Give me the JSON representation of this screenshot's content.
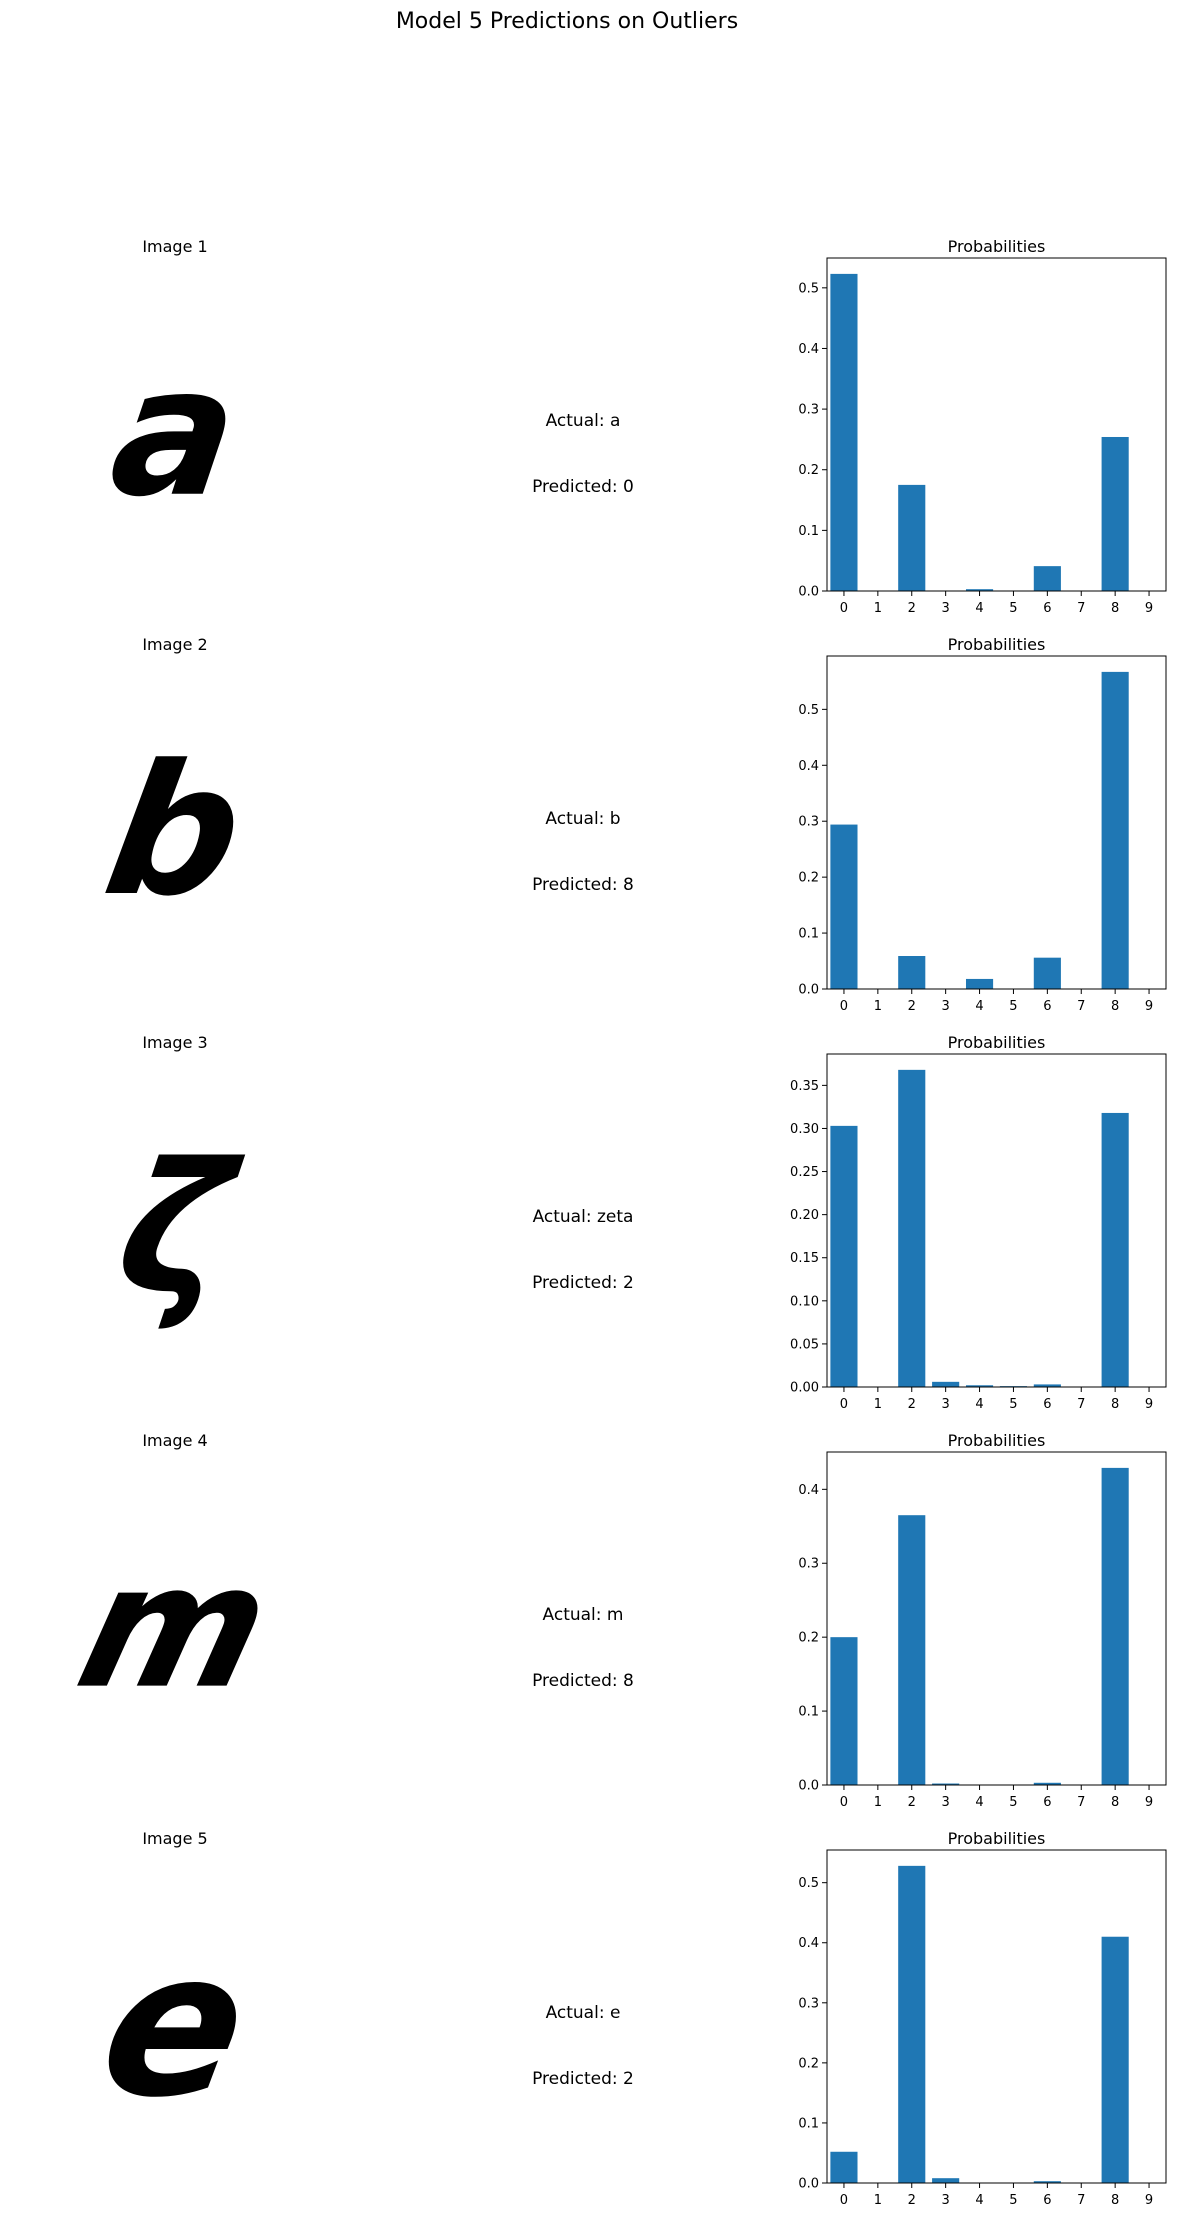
{
  "figure": {
    "title": "Model 5 Predictions on Outliers",
    "panels": [
      {
        "image_title": "Image 1",
        "actual": "Actual: a",
        "predicted": "Predicted: 0",
        "glyph": "a",
        "glyph_size": 178,
        "glyph_skew": -8
      },
      {
        "image_title": "Image 2",
        "actual": "Actual: b",
        "predicted": "Predicted: 8",
        "glyph": "b",
        "glyph_size": 180,
        "glyph_skew": -10
      },
      {
        "image_title": "Image 3",
        "actual": "Actual: zeta",
        "predicted": "Predicted: 2",
        "glyph": "ζ",
        "glyph_size": 180,
        "glyph_skew": -8
      },
      {
        "image_title": "Image 4",
        "actual": "Actual: m",
        "predicted": "Predicted: 8",
        "glyph": "m",
        "glyph_size": 170,
        "glyph_skew": -14
      },
      {
        "image_title": "Image 5",
        "actual": "Actual: e",
        "predicted": "Predicted: 2",
        "glyph": "e",
        "glyph_size": 200,
        "glyph_skew": -10
      }
    ]
  },
  "colors": {
    "bar": "#1f77b4",
    "axis": "#000000",
    "glyph": "#000000"
  },
  "chart_data": [
    {
      "type": "bar",
      "title": "Probabilities",
      "categories": [
        "0",
        "1",
        "2",
        "3",
        "4",
        "5",
        "6",
        "7",
        "8",
        "9"
      ],
      "values": [
        0.523,
        0.0,
        0.175,
        0.0,
        0.003,
        0.0,
        0.041,
        0.0,
        0.254,
        0.0
      ],
      "ylim": [
        0,
        0.5492
      ],
      "yticks": [
        0.0,
        0.1,
        0.2,
        0.3,
        0.4,
        0.5
      ],
      "ytick_labels": [
        "0.0",
        "0.1",
        "0.2",
        "0.3",
        "0.4",
        "0.5"
      ]
    },
    {
      "type": "bar",
      "title": "Probabilities",
      "categories": [
        "0",
        "1",
        "2",
        "3",
        "4",
        "5",
        "6",
        "7",
        "8",
        "9"
      ],
      "values": [
        0.294,
        0.0,
        0.059,
        0.0,
        0.018,
        0.0,
        0.056,
        0.0,
        0.567,
        0.0
      ],
      "ylim": [
        0,
        0.5954
      ],
      "yticks": [
        0.0,
        0.1,
        0.2,
        0.3,
        0.4,
        0.5
      ],
      "ytick_labels": [
        "0.0",
        "0.1",
        "0.2",
        "0.3",
        "0.4",
        "0.5"
      ]
    },
    {
      "type": "bar",
      "title": "Probabilities",
      "categories": [
        "0",
        "1",
        "2",
        "3",
        "4",
        "5",
        "6",
        "7",
        "8",
        "9"
      ],
      "values": [
        0.303,
        0.0,
        0.368,
        0.006,
        0.002,
        0.001,
        0.003,
        0.0,
        0.318,
        0.0
      ],
      "ylim": [
        0,
        0.3864
      ],
      "yticks": [
        0.0,
        0.05,
        0.1,
        0.15,
        0.2,
        0.25,
        0.3,
        0.35
      ],
      "ytick_labels": [
        "0.00",
        "0.05",
        "0.10",
        "0.15",
        "0.20",
        "0.25",
        "0.30",
        "0.35"
      ]
    },
    {
      "type": "bar",
      "title": "Probabilities",
      "categories": [
        "0",
        "1",
        "2",
        "3",
        "4",
        "5",
        "6",
        "7",
        "8",
        "9"
      ],
      "values": [
        0.2,
        0.0,
        0.365,
        0.002,
        0.0,
        0.0,
        0.003,
        0.0,
        0.429,
        0.0
      ],
      "ylim": [
        0,
        0.4505
      ],
      "yticks": [
        0.0,
        0.1,
        0.2,
        0.3,
        0.4
      ],
      "ytick_labels": [
        "0.0",
        "0.1",
        "0.2",
        "0.3",
        "0.4"
      ]
    },
    {
      "type": "bar",
      "title": "Probabilities",
      "categories": [
        "0",
        "1",
        "2",
        "3",
        "4",
        "5",
        "6",
        "7",
        "8",
        "9"
      ],
      "values": [
        0.052,
        0.0,
        0.528,
        0.008,
        0.0,
        0.0,
        0.003,
        0.0,
        0.41,
        0.0
      ],
      "ylim": [
        0,
        0.5544
      ],
      "yticks": [
        0.0,
        0.1,
        0.2,
        0.3,
        0.4,
        0.5
      ],
      "ytick_labels": [
        "0.0",
        "0.1",
        "0.2",
        "0.3",
        "0.4",
        "0.5"
      ]
    }
  ]
}
